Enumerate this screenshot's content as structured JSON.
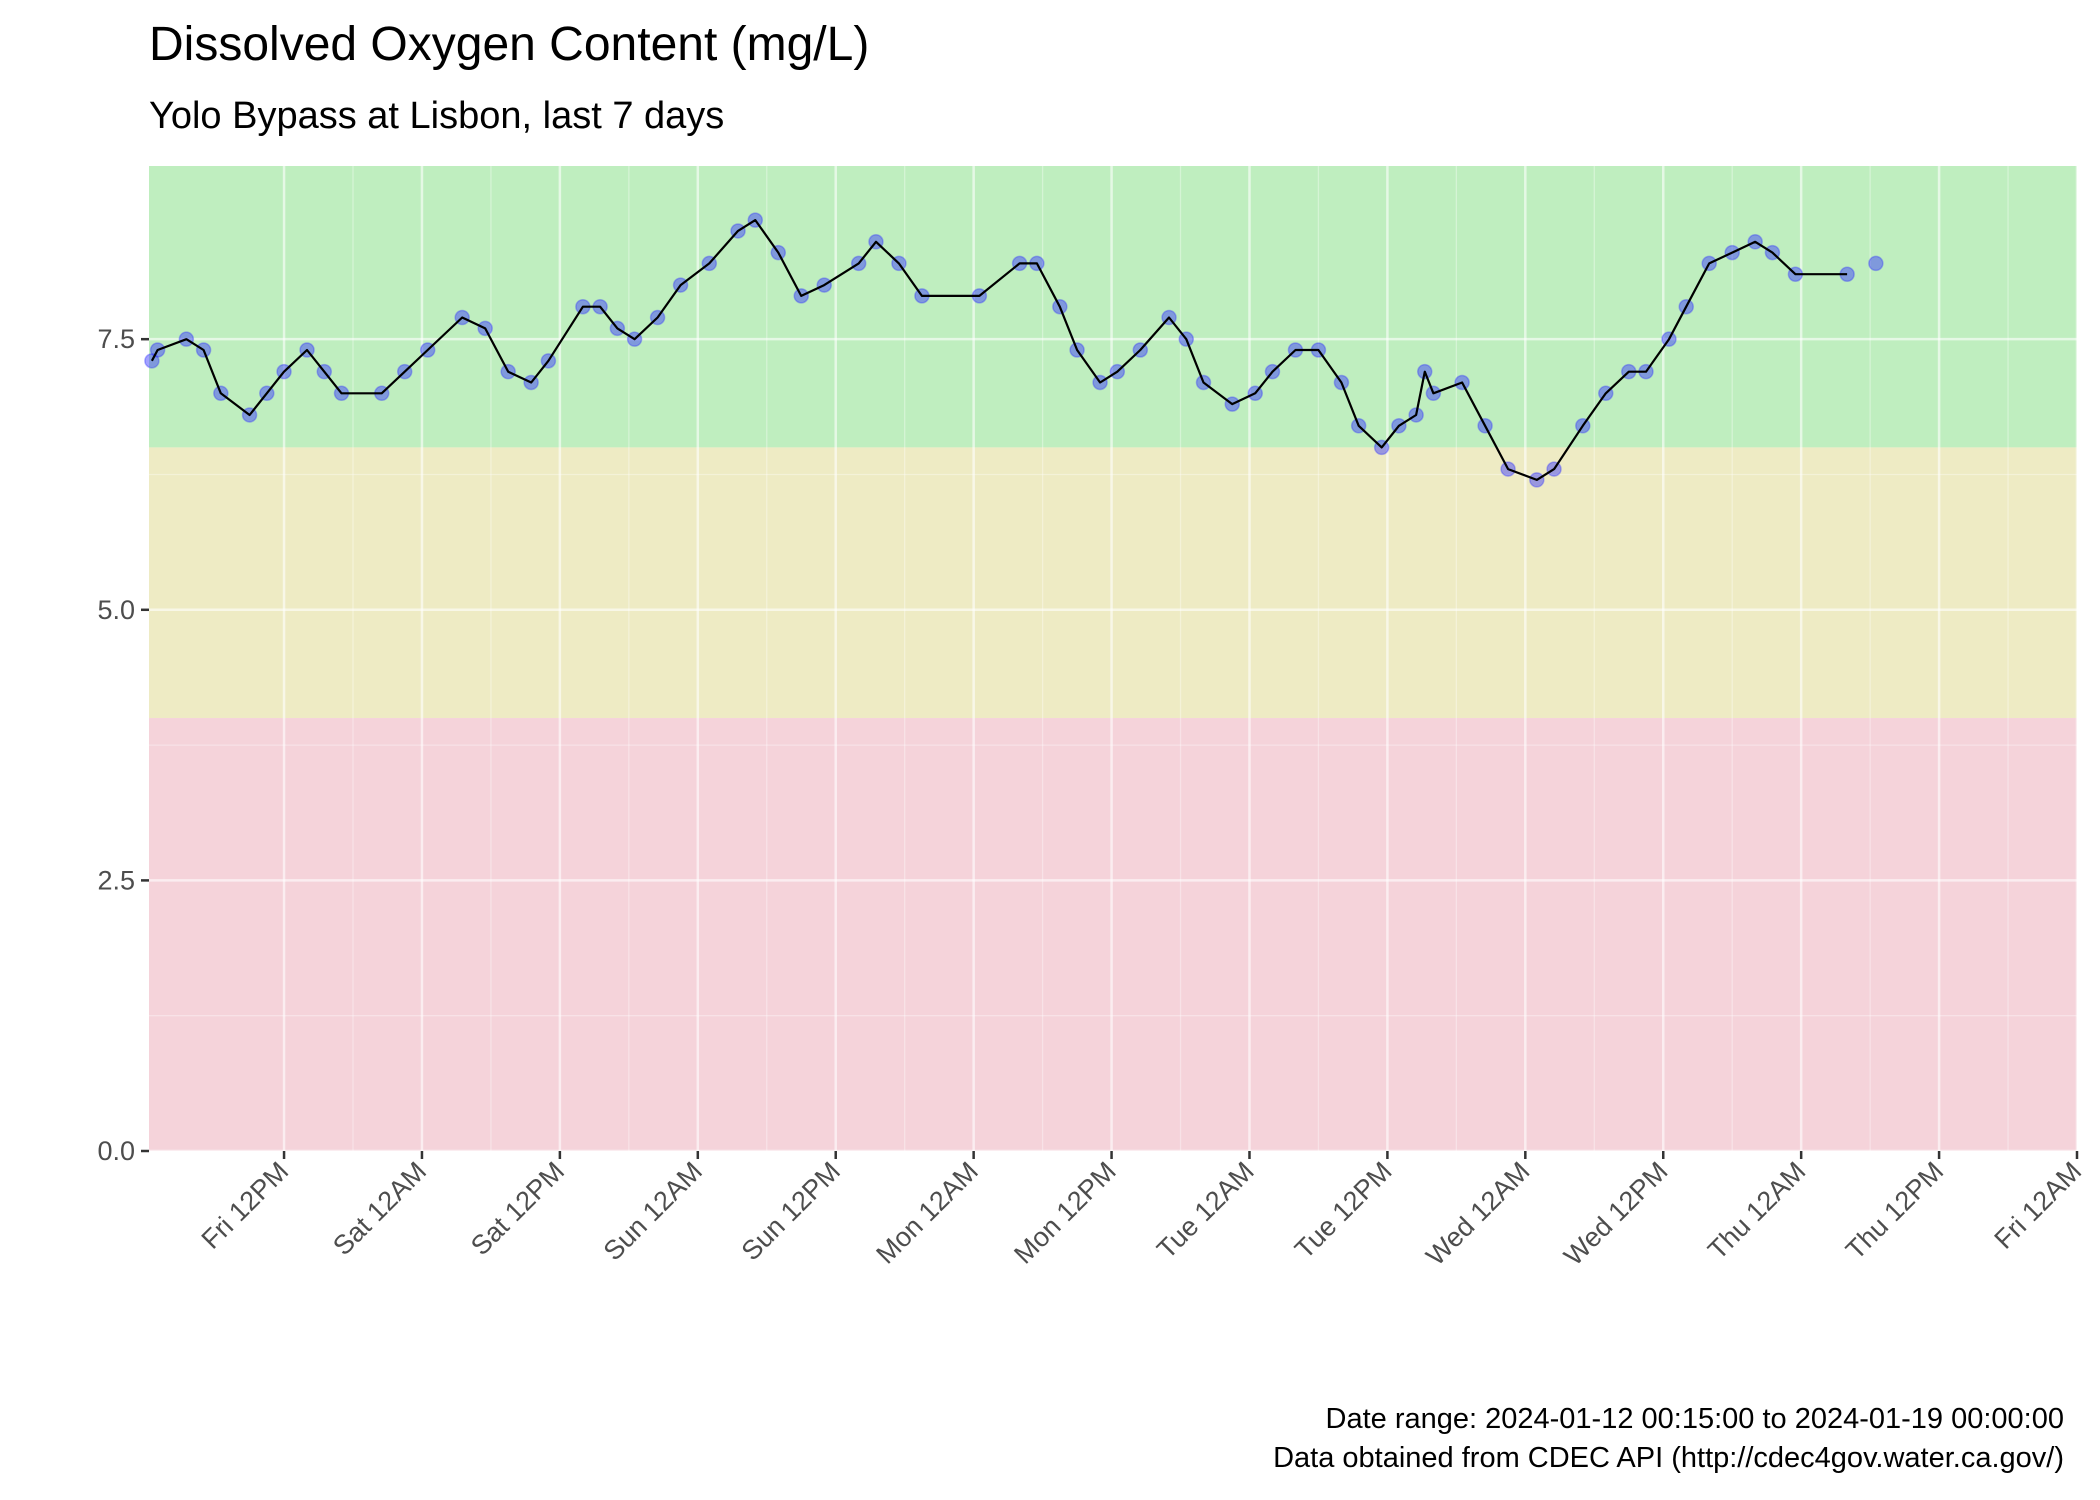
{
  "chart_data": {
    "type": "line",
    "title": "Dissolved Oxygen Content (mg/L)",
    "subtitle": "Yolo Bypass at Lisbon, last 7 days",
    "caption": [
      "Date range: 2024-01-12 00:15:00 to 2024-01-19 00:00:00",
      "Data obtained from CDEC API (http://cdec4gov.water.ca.gov/)"
    ],
    "xlim": [
      "2024-01-12 00:15",
      "2024-01-19 00:00"
    ],
    "xticks": [
      {
        "value": "2024-01-12 12:00",
        "label": "Fri 12PM"
      },
      {
        "value": "2024-01-13 00:00",
        "label": "Sat 12AM"
      },
      {
        "value": "2024-01-13 12:00",
        "label": "Sat 12PM"
      },
      {
        "value": "2024-01-14 00:00",
        "label": "Sun 12AM"
      },
      {
        "value": "2024-01-14 12:00",
        "label": "Sun 12PM"
      },
      {
        "value": "2024-01-15 00:00",
        "label": "Mon 12AM"
      },
      {
        "value": "2024-01-15 12:00",
        "label": "Mon 12PM"
      },
      {
        "value": "2024-01-16 00:00",
        "label": "Tue 12AM"
      },
      {
        "value": "2024-01-16 12:00",
        "label": "Tue 12PM"
      },
      {
        "value": "2024-01-17 00:00",
        "label": "Wed 12AM"
      },
      {
        "value": "2024-01-17 12:00",
        "label": "Wed 12PM"
      },
      {
        "value": "2024-01-18 00:00",
        "label": "Thu 12AM"
      },
      {
        "value": "2024-01-18 12:00",
        "label": "Thu 12PM"
      },
      {
        "value": "2024-01-19 00:00",
        "label": "Fri 12AM"
      }
    ],
    "ylim": [
      0,
      9.1
    ],
    "yticks": [
      {
        "value": 0,
        "label": "0.0"
      },
      {
        "value": 2.5,
        "label": "2.5"
      },
      {
        "value": 5,
        "label": "5.0"
      },
      {
        "value": 7.5,
        "label": "7.5"
      }
    ],
    "grid": true,
    "bands": [
      {
        "from": 6.5,
        "to": 9.1,
        "color": "#bfeebf"
      },
      {
        "from": 4,
        "to": 6.5,
        "color": "#eeebc4"
      },
      {
        "from": 0,
        "to": 4,
        "color": "#f5d3da"
      }
    ],
    "x": [
      "2024-01-12 00:30",
      "2024-01-12 01:00",
      "2024-01-12 03:30",
      "2024-01-12 05:00",
      "2024-01-12 06:30",
      "2024-01-12 09:00",
      "2024-01-12 10:30",
      "2024-01-12 12:00",
      "2024-01-12 14:00",
      "2024-01-12 15:30",
      "2024-01-12 17:00",
      "2024-01-12 20:30",
      "2024-01-12 22:30",
      "2024-01-13 00:30",
      "2024-01-13 03:30",
      "2024-01-13 05:30",
      "2024-01-13 07:30",
      "2024-01-13 09:30",
      "2024-01-13 11:00",
      "2024-01-13 14:00",
      "2024-01-13 15:30",
      "2024-01-13 17:00",
      "2024-01-13 18:30",
      "2024-01-13 20:30",
      "2024-01-13 22:30",
      "2024-01-14 01:00",
      "2024-01-14 03:30",
      "2024-01-14 05:00",
      "2024-01-14 07:00",
      "2024-01-14 09:00",
      "2024-01-14 11:00",
      "2024-01-14 14:00",
      "2024-01-14 15:30",
      "2024-01-14 17:30",
      "2024-01-14 19:30",
      "2024-01-15 00:30",
      "2024-01-15 04:00",
      "2024-01-15 05:30",
      "2024-01-15 07:30",
      "2024-01-15 09:00",
      "2024-01-15 11:00",
      "2024-01-15 12:30",
      "2024-01-15 14:30",
      "2024-01-15 17:00",
      "2024-01-15 18:30",
      "2024-01-15 20:00",
      "2024-01-15 22:30",
      "2024-01-16 00:30",
      "2024-01-16 02:00",
      "2024-01-16 04:00",
      "2024-01-16 06:00",
      "2024-01-16 08:00",
      "2024-01-16 09:30",
      "2024-01-16 11:30",
      "2024-01-16 13:00",
      "2024-01-16 14:30",
      "2024-01-16 15:15",
      "2024-01-16 16:00",
      "2024-01-16 18:30",
      "2024-01-16 20:30",
      "2024-01-16 22:30",
      "2024-01-17 01:00",
      "2024-01-17 02:30",
      "2024-01-17 05:00",
      "2024-01-17 07:00",
      "2024-01-17 09:00",
      "2024-01-17 10:30",
      "2024-01-17 12:30",
      "2024-01-17 14:00",
      "2024-01-17 16:00",
      "2024-01-17 18:00",
      "2024-01-17 20:00",
      "2024-01-17 21:30",
      "2024-01-17 23:30",
      "2024-01-18 04:00",
      "2024-01-18 05:00",
      "2024-01-18 06:30"
    ],
    "series": [
      {
        "name": "Dissolved Oxygen",
        "color": "#3030ff",
        "line_color": "#000000",
        "values": [
          7.3,
          7.4,
          7.5,
          7.4,
          7.0,
          6.8,
          7.0,
          7.2,
          7.4,
          7.2,
          7.0,
          7.0,
          7.2,
          7.4,
          7.7,
          7.6,
          7.2,
          7.1,
          7.3,
          7.8,
          7.8,
          7.6,
          7.5,
          7.7,
          8.0,
          8.2,
          8.5,
          8.6,
          8.3,
          7.9,
          8.0,
          8.2,
          8.4,
          8.2,
          7.9,
          7.9,
          8.2,
          8.2,
          7.8,
          7.4,
          7.1,
          7.2,
          7.4,
          7.7,
          7.5,
          7.1,
          6.9,
          7.0,
          7.2,
          7.4,
          7.4,
          7.1,
          6.7,
          6.5,
          6.7,
          6.8,
          7.2,
          7.0,
          7.1,
          6.7,
          6.3,
          6.2,
          6.3,
          6.7,
          7.0,
          7.2,
          7.2,
          7.5,
          7.8,
          8.2,
          8.3,
          8.4,
          8.3,
          8.1,
          8.1,
          null,
          8.2
        ]
      }
    ]
  }
}
